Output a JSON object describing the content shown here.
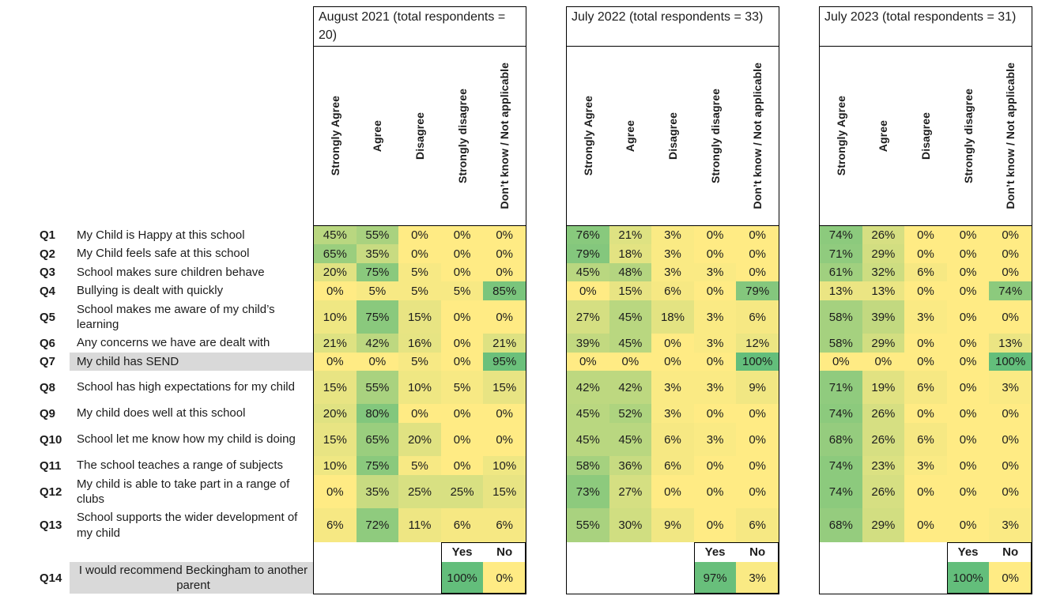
{
  "chart_data": {
    "type": "heatmap",
    "unit": "%",
    "color_scale": {
      "min_value": 0,
      "max_value": 100,
      "min_color": "#FFEB84",
      "max_color": "#63BE7B"
    },
    "columns": [
      "Strongly Agree",
      "Agree",
      "Disagree",
      "Strongly disagree",
      "Don’t know / Not applicable"
    ],
    "questions": [
      {
        "id": "Q1",
        "text": "My Child is Happy at this school",
        "highlight": false
      },
      {
        "id": "Q2",
        "text": "My Child feels safe at this school",
        "highlight": false
      },
      {
        "id": "Q3",
        "text": "School makes sure children behave",
        "highlight": false
      },
      {
        "id": "Q4",
        "text": "Bullying is dealt with quickly",
        "highlight": false
      },
      {
        "id": "Q5",
        "text": "School makes me aware of my child’s learning",
        "highlight": false
      },
      {
        "id": "Q6",
        "text": "Any concerns we have are dealt with",
        "highlight": false
      },
      {
        "id": "Q7",
        "text": "My child has SEND",
        "highlight": true
      },
      {
        "id": "Q8",
        "text": "School has high expectations for my child",
        "highlight": false
      },
      {
        "id": "Q9",
        "text": "My child does well at this school",
        "highlight": false
      },
      {
        "id": "Q10",
        "text": "School let me know how my child is doing",
        "highlight": false
      },
      {
        "id": "Q11",
        "text": "The school teaches a range of subjects",
        "highlight": false
      },
      {
        "id": "Q12",
        "text": "My child is able to take part in a range of clubs",
        "highlight": false
      },
      {
        "id": "Q13",
        "text": "School supports the wider development of my child",
        "highlight": false
      }
    ],
    "q14": {
      "id": "Q14",
      "text": "I would recommend Beckingham to another parent",
      "highlight": true
    },
    "yes_no_labels": [
      "Yes",
      "No"
    ],
    "groups": [
      {
        "title": "August 2021 (total respondents = 20)",
        "values_pct": [
          [
            45,
            55,
            0,
            0,
            0
          ],
          [
            65,
            35,
            0,
            0,
            0
          ],
          [
            20,
            75,
            5,
            0,
            0
          ],
          [
            0,
            5,
            5,
            5,
            85
          ],
          [
            10,
            75,
            15,
            0,
            0
          ],
          [
            21,
            42,
            16,
            0,
            21
          ],
          [
            0,
            0,
            5,
            0,
            95
          ],
          [
            15,
            55,
            10,
            5,
            15
          ],
          [
            20,
            80,
            0,
            0,
            0
          ],
          [
            15,
            65,
            20,
            0,
            0
          ],
          [
            10,
            75,
            5,
            0,
            10
          ],
          [
            0,
            35,
            25,
            25,
            15
          ],
          [
            6,
            72,
            11,
            6,
            6
          ]
        ],
        "q14_yes": 100,
        "q14_no": 0
      },
      {
        "title": "July 2022 (total respondents = 33)",
        "values_pct": [
          [
            76,
            21,
            3,
            0,
            0
          ],
          [
            79,
            18,
            3,
            0,
            0
          ],
          [
            45,
            48,
            3,
            3,
            0
          ],
          [
            0,
            15,
            6,
            0,
            79
          ],
          [
            27,
            45,
            18,
            3,
            6
          ],
          [
            39,
            45,
            0,
            3,
            12
          ],
          [
            0,
            0,
            0,
            0,
            100
          ],
          [
            42,
            42,
            3,
            3,
            9
          ],
          [
            45,
            52,
            3,
            0,
            0
          ],
          [
            45,
            45,
            6,
            3,
            0
          ],
          [
            58,
            36,
            6,
            0,
            0
          ],
          [
            73,
            27,
            0,
            0,
            0
          ],
          [
            55,
            30,
            9,
            0,
            6
          ]
        ],
        "q14_yes": 97,
        "q14_no": 3
      },
      {
        "title": "July 2023 (total respondents = 31)",
        "values_pct": [
          [
            74,
            26,
            0,
            0,
            0
          ],
          [
            71,
            29,
            0,
            0,
            0
          ],
          [
            61,
            32,
            6,
            0,
            0
          ],
          [
            13,
            13,
            0,
            0,
            74
          ],
          [
            58,
            39,
            3,
            0,
            0
          ],
          [
            58,
            29,
            0,
            0,
            13
          ],
          [
            0,
            0,
            0,
            0,
            100
          ],
          [
            71,
            19,
            6,
            0,
            3
          ],
          [
            74,
            26,
            0,
            0,
            0
          ],
          [
            68,
            26,
            6,
            0,
            0
          ],
          [
            74,
            23,
            3,
            0,
            0
          ],
          [
            74,
            26,
            0,
            0,
            0
          ],
          [
            68,
            29,
            0,
            0,
            3
          ]
        ],
        "q14_yes": 100,
        "q14_no": 0
      }
    ]
  },
  "colors": {
    "row_highlight": "#D9D9D9",
    "border": "#000000",
    "background": "#FFFFFF"
  }
}
